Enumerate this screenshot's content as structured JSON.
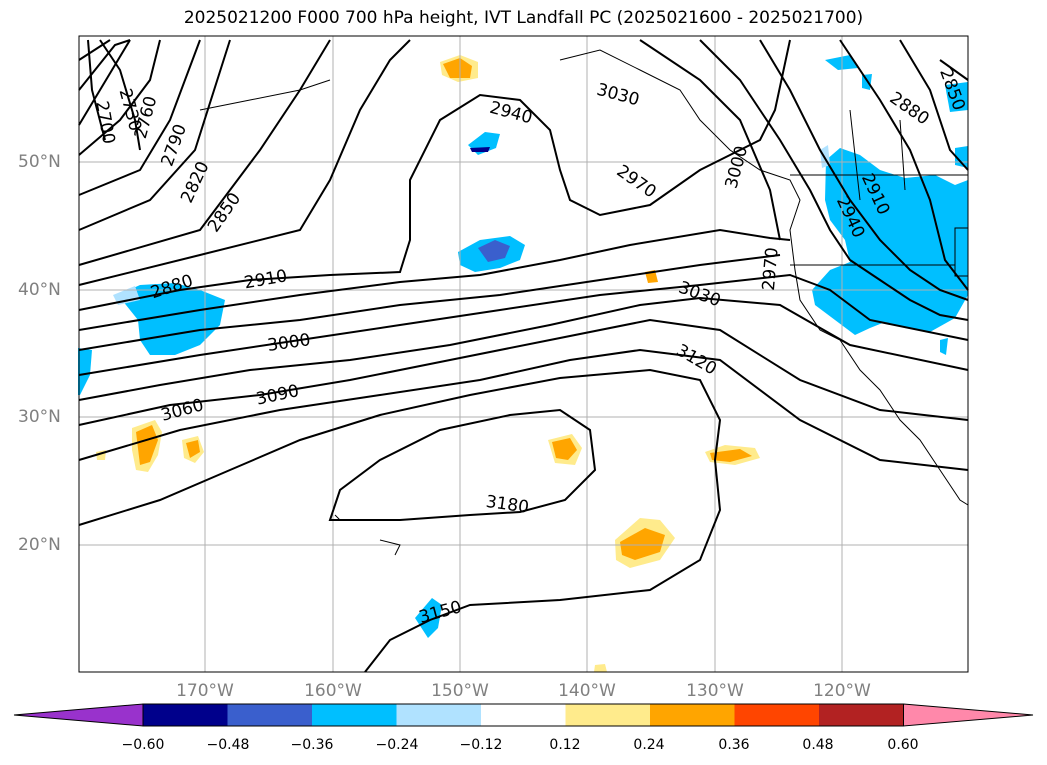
{
  "title": "2025021200 F000 700 hPa height, IVT Landfall PC (2025021600 - 2025021700)",
  "map": {
    "projection": "cylindrical",
    "lon_range": [
      -180,
      -110
    ],
    "lat_range": [
      10,
      60
    ],
    "lat_ticks": [
      "50°N",
      "40°N",
      "30°N",
      "20°N"
    ],
    "lon_ticks": [
      "170°W",
      "160°W",
      "150°W",
      "140°W",
      "130°W",
      "120°W"
    ],
    "grid": true,
    "contour_color": "#000000",
    "contour_labels": [
      "2700",
      "2730",
      "2760",
      "2790",
      "2820",
      "2850",
      "2880",
      "2910",
      "2940",
      "2970",
      "3000",
      "3030",
      "3060",
      "3090",
      "3120",
      "3150",
      "3180",
      "3000",
      "3030",
      "2970",
      "2940",
      "2910",
      "2880",
      "2850",
      "2970",
      "3030"
    ]
  },
  "colorbar": {
    "ticks": [
      "−0.60",
      "−0.48",
      "−0.36",
      "−0.24",
      "−0.12",
      "0.12",
      "0.24",
      "0.36",
      "0.48",
      "0.60"
    ],
    "colors": [
      "#9932cc",
      "#00008b",
      "#3a5fcd",
      "#00bfff",
      "#b0e2ff",
      "#ffffff",
      "#ffeb8c",
      "#ffa500",
      "#ff4500",
      "#b22222",
      "#ff88aa"
    ]
  }
}
